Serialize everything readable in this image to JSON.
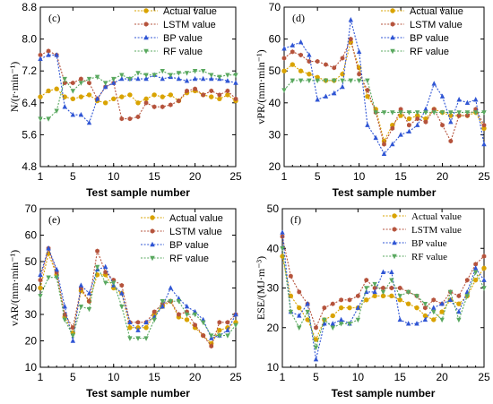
{
  "figure": {
    "colors": {
      "actual": "#d9a300",
      "lstm": "#b5533c",
      "bp": "#2f55d4",
      "rf": "#59a85f"
    },
    "legend_labels": [
      "Actual value",
      "LSTM value",
      "BP value",
      "RF value"
    ],
    "legend_markers": [
      "circle",
      "hexagon",
      "triangle-up",
      "triangle-down"
    ]
  },
  "chart_data": [
    {
      "type": "line",
      "panel": "(c)",
      "ylabel": "N/(r·min⁻¹)",
      "xlabel": "Test sample number",
      "xlim": [
        1,
        25
      ],
      "ylim": [
        4.8,
        8.8
      ],
      "xticks": [
        "1",
        "5",
        "10",
        "15",
        "20",
        "25"
      ],
      "yticks": [
        "4.8",
        "5.6",
        "6.4",
        "7.2",
        "8.0",
        "8.8"
      ],
      "x": [
        1,
        2,
        3,
        4,
        5,
        6,
        7,
        8,
        9,
        10,
        11,
        12,
        13,
        14,
        15,
        16,
        17,
        18,
        19,
        20,
        21,
        22,
        23,
        24,
        25
      ],
      "series": [
        {
          "name": "Actual value",
          "values": [
            6.55,
            6.7,
            6.75,
            6.55,
            6.5,
            6.55,
            6.6,
            6.45,
            6.4,
            6.5,
            6.55,
            6.6,
            6.4,
            6.5,
            6.6,
            6.55,
            6.6,
            6.45,
            6.65,
            6.7,
            6.6,
            6.55,
            6.5,
            6.6,
            6.45
          ]
        },
        {
          "name": "LSTM value",
          "values": [
            7.6,
            7.7,
            7.6,
            6.9,
            6.9,
            7.0,
            6.9,
            6.5,
            6.8,
            6.9,
            6.0,
            6.0,
            6.05,
            6.4,
            6.3,
            6.3,
            6.35,
            6.45,
            6.7,
            6.75,
            6.6,
            6.7,
            6.6,
            6.7,
            6.5
          ]
        },
        {
          "name": "BP value",
          "values": [
            7.5,
            7.6,
            7.6,
            6.3,
            6.1,
            6.1,
            5.9,
            6.5,
            6.8,
            6.9,
            7.0,
            7.0,
            7.0,
            7.0,
            7.1,
            7.0,
            7.05,
            7.0,
            6.95,
            7.0,
            7.0,
            7.0,
            7.0,
            6.95,
            6.9
          ]
        },
        {
          "name": "RF value",
          "values": [
            6.0,
            6.0,
            6.2,
            7.0,
            6.7,
            6.9,
            7.0,
            7.05,
            6.9,
            7.0,
            7.1,
            7.0,
            7.15,
            7.1,
            7.1,
            7.2,
            7.1,
            7.15,
            7.15,
            7.2,
            7.2,
            7.1,
            7.05,
            7.1,
            7.1
          ]
        }
      ]
    },
    {
      "type": "line",
      "panel": "(d)",
      "ylabel": "vPR/(mm·min⁻¹)",
      "xlabel": "Test sample number",
      "xlim": [
        1,
        25
      ],
      "ylim": [
        20,
        70
      ],
      "xticks": [
        "1",
        "5",
        "10",
        "15",
        "20",
        "25"
      ],
      "yticks": [
        "20",
        "30",
        "40",
        "50",
        "60",
        "70"
      ],
      "x": [
        1,
        2,
        3,
        4,
        5,
        6,
        7,
        8,
        9,
        10,
        11,
        12,
        13,
        14,
        15,
        16,
        17,
        18,
        19,
        20,
        21,
        22,
        23,
        24,
        25
      ],
      "series": [
        {
          "name": "Actual value",
          "values": [
            50,
            52,
            50,
            49,
            48,
            47,
            47,
            49,
            59,
            51,
            42,
            38,
            28,
            33,
            36,
            35,
            36,
            35,
            38,
            37,
            36,
            36,
            36,
            37,
            32
          ]
        },
        {
          "name": "LSTM value",
          "values": [
            54,
            56,
            55,
            53,
            53,
            52,
            51,
            54,
            60,
            49,
            44,
            37,
            27,
            32,
            38,
            33,
            35,
            34,
            38,
            33,
            28,
            36,
            36,
            38,
            33
          ]
        },
        {
          "name": "BP value",
          "values": [
            57,
            58,
            59,
            55,
            41,
            42,
            43,
            45,
            66,
            56,
            33,
            29,
            24,
            27,
            30,
            31,
            33,
            38,
            46,
            42,
            34,
            41,
            40,
            41,
            27
          ]
        },
        {
          "name": "RF value",
          "values": [
            44,
            47,
            47,
            47,
            47,
            47,
            47,
            47,
            47,
            47,
            47,
            37,
            37,
            37,
            37,
            37,
            37,
            37,
            37,
            37,
            37,
            37,
            37,
            37,
            37
          ]
        }
      ]
    },
    {
      "type": "line",
      "panel": "(e)",
      "ylabel": "vAR/(mm·min⁻¹)",
      "xlabel": "Test sample number",
      "xlim": [
        1,
        25
      ],
      "ylim": [
        10,
        70
      ],
      "xticks": [
        "1",
        "5",
        "10",
        "15",
        "20",
        "25"
      ],
      "yticks": [
        "10",
        "20",
        "30",
        "40",
        "50",
        "60",
        "70"
      ],
      "x": [
        1,
        2,
        3,
        4,
        5,
        6,
        7,
        8,
        9,
        10,
        11,
        12,
        13,
        14,
        15,
        16,
        17,
        18,
        19,
        20,
        21,
        22,
        23,
        24,
        25
      ],
      "series": [
        {
          "name": "Actual value",
          "values": [
            40,
            53,
            45,
            29,
            23,
            39,
            35,
            45,
            45,
            40,
            38,
            25,
            25,
            25,
            30,
            33,
            35,
            29,
            28,
            25,
            22,
            19,
            24,
            25,
            27
          ]
        },
        {
          "name": "LSTM value",
          "values": [
            43,
            55,
            46,
            30,
            25,
            40,
            35,
            54,
            46,
            43,
            41,
            27,
            27,
            27,
            31,
            34,
            35,
            30,
            31,
            26,
            22,
            18,
            27,
            27,
            30
          ]
        },
        {
          "name": "BP value",
          "values": [
            45,
            55,
            47,
            33,
            20,
            41,
            38,
            47,
            48,
            41,
            38,
            27,
            24,
            27,
            29,
            33,
            40,
            36,
            33,
            31,
            28,
            21,
            22,
            24,
            30
          ]
        },
        {
          "name": "RF value",
          "values": [
            37,
            44,
            44,
            28,
            22,
            33,
            32,
            48,
            42,
            42,
            33,
            21,
            21,
            21,
            28,
            35,
            35,
            35,
            30,
            30,
            27,
            22,
            22,
            22,
            26
          ]
        }
      ]
    },
    {
      "type": "line",
      "panel": "(f)",
      "ylabel": "ESE/(MJ·m⁻³)",
      "xlabel": "Test sample number",
      "xlim": [
        1,
        25
      ],
      "ylim": [
        10,
        50
      ],
      "xticks": [
        "1",
        "5",
        "10",
        "15",
        "20",
        "25"
      ],
      "yticks": [
        "10",
        "20",
        "30",
        "40",
        "50"
      ],
      "x": [
        1,
        2,
        3,
        4,
        5,
        6,
        7,
        8,
        9,
        10,
        11,
        12,
        13,
        14,
        15,
        16,
        17,
        18,
        19,
        20,
        21,
        22,
        23,
        24,
        25
      ],
      "series": [
        {
          "name": "Actual value",
          "values": [
            38,
            28,
            25,
            22,
            17,
            22,
            23,
            25,
            25,
            25,
            27,
            28,
            28,
            28,
            27,
            26,
            25,
            23,
            22,
            24,
            27,
            26,
            28,
            32,
            35
          ]
        },
        {
          "name": "LSTM value",
          "values": [
            43,
            33,
            29,
            26,
            20,
            25,
            26,
            27,
            27,
            28,
            32,
            30,
            30,
            30,
            30,
            29,
            28,
            25,
            27,
            26,
            29,
            28,
            32,
            36,
            38
          ]
        },
        {
          "name": "BP value",
          "values": [
            44,
            24,
            23,
            26,
            12,
            21,
            21,
            22,
            21,
            25,
            29,
            29,
            34,
            34,
            22,
            21,
            21,
            22,
            25,
            26,
            27,
            24,
            29,
            35,
            32
          ]
        },
        {
          "name": "RF value",
          "values": [
            40,
            24,
            20,
            24,
            15,
            22,
            20,
            21,
            21,
            22,
            30,
            31,
            29,
            32,
            28,
            29,
            28,
            26,
            24,
            22,
            29,
            22,
            28,
            34,
            30
          ]
        }
      ]
    }
  ]
}
